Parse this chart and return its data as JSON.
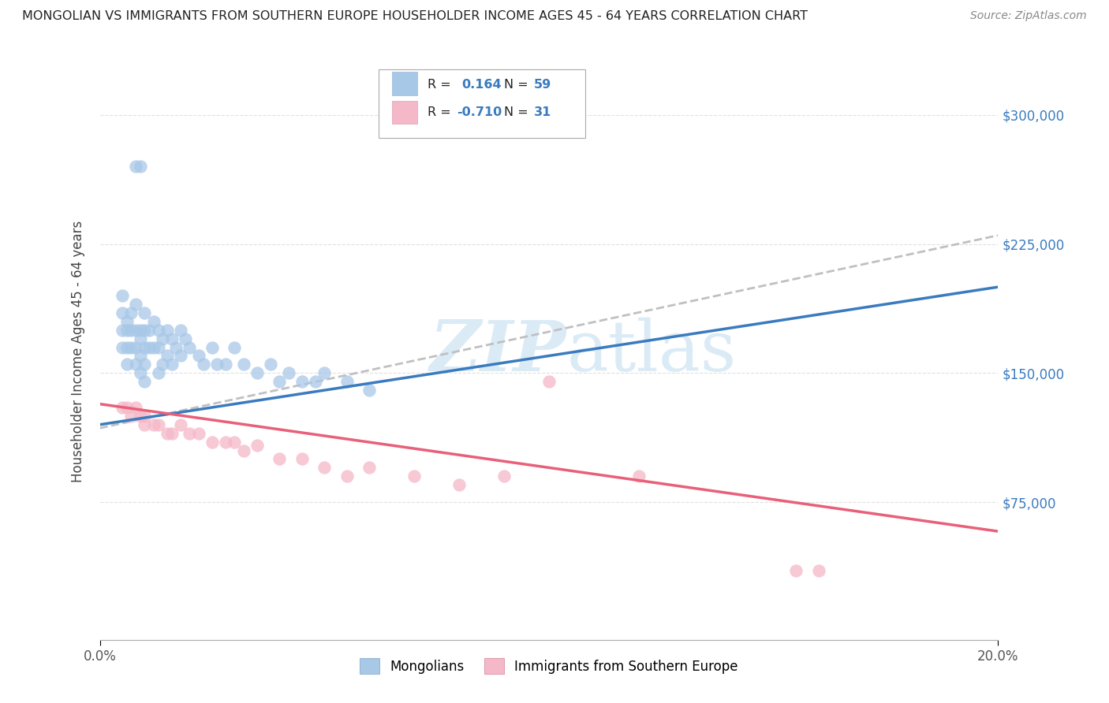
{
  "title": "MONGOLIAN VS IMMIGRANTS FROM SOUTHERN EUROPE HOUSEHOLDER INCOME AGES 45 - 64 YEARS CORRELATION CHART",
  "source": "Source: ZipAtlas.com",
  "ylabel": "Householder Income Ages 45 - 64 years",
  "xlim": [
    0.0,
    0.2
  ],
  "ylim": [
    -5000,
    330000
  ],
  "yticks": [
    75000,
    150000,
    225000,
    300000
  ],
  "ytick_labels": [
    "$75,000",
    "$150,000",
    "$225,000",
    "$300,000"
  ],
  "xtick_left_label": "0.0%",
  "xtick_right_label": "20.0%",
  "mongolian_color": "#a8c8e8",
  "immigrant_color": "#f5b8c8",
  "mongolian_line_color": "#3a7bbf",
  "immigrant_line_color": "#e8607a",
  "trend_line_color_gray": "#c0c0c0",
  "background_color": "#ffffff",
  "grid_color": "#e0e0e0",
  "watermark_color": "#d5e8f5",
  "mongolian_x": [
    0.005,
    0.005,
    0.005,
    0.005,
    0.006,
    0.006,
    0.006,
    0.006,
    0.007,
    0.007,
    0.007,
    0.008,
    0.008,
    0.008,
    0.008,
    0.009,
    0.009,
    0.009,
    0.009,
    0.01,
    0.01,
    0.01,
    0.01,
    0.01,
    0.011,
    0.011,
    0.012,
    0.012,
    0.013,
    0.013,
    0.013,
    0.014,
    0.014,
    0.015,
    0.015,
    0.016,
    0.016,
    0.017,
    0.018,
    0.018,
    0.019,
    0.02,
    0.022,
    0.023,
    0.025,
    0.026,
    0.028,
    0.03,
    0.032,
    0.035,
    0.038,
    0.04,
    0.042,
    0.045,
    0.048,
    0.05,
    0.055,
    0.06,
    0.008,
    0.009
  ],
  "mongolian_y": [
    195000,
    185000,
    175000,
    165000,
    180000,
    175000,
    165000,
    155000,
    185000,
    175000,
    165000,
    190000,
    175000,
    165000,
    155000,
    175000,
    170000,
    160000,
    150000,
    185000,
    175000,
    165000,
    155000,
    145000,
    175000,
    165000,
    180000,
    165000,
    175000,
    165000,
    150000,
    170000,
    155000,
    175000,
    160000,
    170000,
    155000,
    165000,
    175000,
    160000,
    170000,
    165000,
    160000,
    155000,
    165000,
    155000,
    155000,
    165000,
    155000,
    150000,
    155000,
    145000,
    150000,
    145000,
    145000,
    150000,
    145000,
    140000,
    270000,
    270000
  ],
  "immigrant_x": [
    0.005,
    0.006,
    0.007,
    0.008,
    0.009,
    0.01,
    0.01,
    0.012,
    0.013,
    0.015,
    0.016,
    0.018,
    0.02,
    0.022,
    0.025,
    0.028,
    0.03,
    0.032,
    0.035,
    0.04,
    0.045,
    0.05,
    0.055,
    0.06,
    0.07,
    0.08,
    0.09,
    0.1,
    0.12,
    0.155,
    0.16
  ],
  "immigrant_y": [
    130000,
    130000,
    125000,
    130000,
    125000,
    125000,
    120000,
    120000,
    120000,
    115000,
    115000,
    120000,
    115000,
    115000,
    110000,
    110000,
    110000,
    105000,
    108000,
    100000,
    100000,
    95000,
    90000,
    95000,
    90000,
    85000,
    90000,
    145000,
    90000,
    35000,
    35000
  ],
  "mongolian_trend_x": [
    0.0,
    0.2
  ],
  "mongolian_trend_y": [
    120000,
    200000
  ],
  "immigrant_trend_x": [
    0.0,
    0.2
  ],
  "immigrant_trend_y": [
    132000,
    58000
  ],
  "gray_trend_x": [
    0.0,
    0.2
  ],
  "gray_trend_y": [
    118000,
    230000
  ]
}
